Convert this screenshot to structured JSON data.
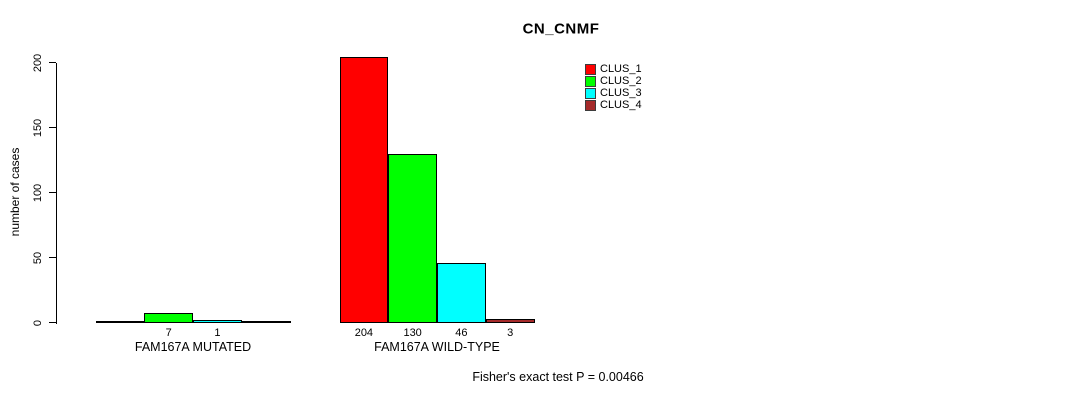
{
  "chart_data": {
    "type": "bar",
    "title": "CN_CNMF",
    "ylabel": "number of cases",
    "xlabel": "",
    "ylim": [
      0,
      200
    ],
    "yticks": [
      "0",
      "50",
      "100",
      "150",
      "200"
    ],
    "grid": false,
    "categories": [
      "FAM167A MUTATED",
      "FAM167A WILD-TYPE"
    ],
    "series": [
      {
        "name": "CLUS_1",
        "color": "#FF0000",
        "values": [
          0,
          204
        ]
      },
      {
        "name": "CLUS_2",
        "color": "#00FF00",
        "values": [
          7,
          130
        ]
      },
      {
        "name": "CLUS_3",
        "color": "#00FFFF",
        "values": [
          1,
          46
        ]
      },
      {
        "name": "CLUS_4",
        "color": "#A52A2A",
        "values": [
          0,
          3
        ]
      }
    ],
    "visible_bar_value_labels": [
      "7",
      "1",
      "204",
      "130",
      "46",
      "3"
    ],
    "legend": {
      "position": "top-right",
      "entries": [
        {
          "label": "CLUS_1",
          "color": "#FF0000"
        },
        {
          "label": "CLUS_2",
          "color": "#00FF00"
        },
        {
          "label": "CLUS_3",
          "color": "#00FFFF"
        },
        {
          "label": "CLUS_4",
          "color": "#A52A2A"
        }
      ]
    },
    "annotation": "Fisher's exact test P = 0.00466",
    "colors": {
      "axis": "#000000",
      "background": "#FFFFFF"
    }
  }
}
